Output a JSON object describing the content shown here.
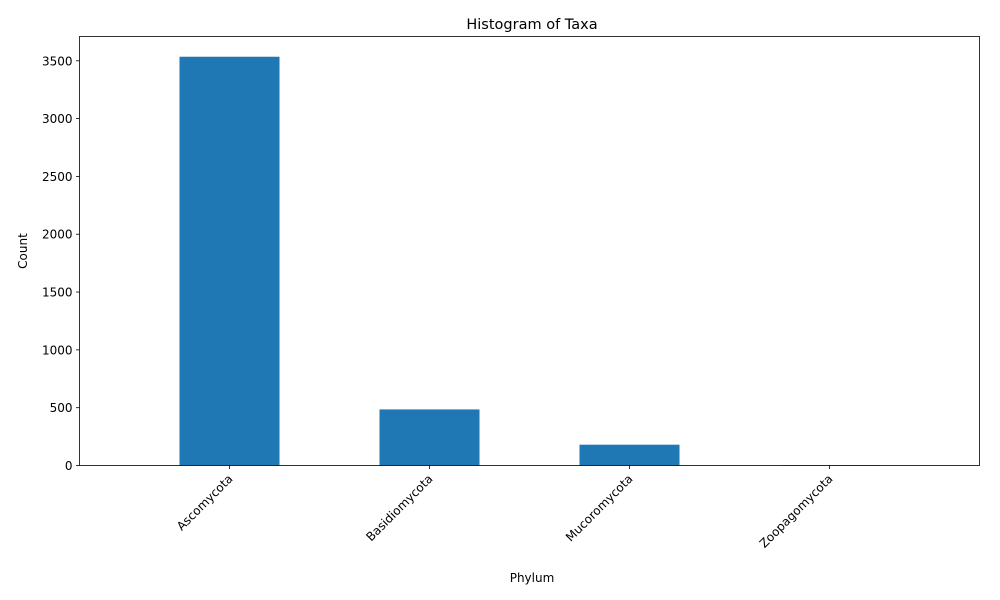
{
  "chart_data": {
    "type": "bar",
    "title": "Histogram of Taxa",
    "xlabel": "Phylum",
    "ylabel": "Count",
    "categories": [
      "Ascomycota",
      "Basidiomycota",
      "Mucoromycota",
      "Zoopagomycota"
    ],
    "values": [
      3535,
      485,
      180,
      3
    ],
    "ylim": [
      0,
      3710
    ],
    "yticks": [
      0,
      500,
      1000,
      1500,
      2000,
      2500,
      3000,
      3500
    ],
    "bar_color": "#1f77b4",
    "grid": false,
    "legend": "none"
  }
}
